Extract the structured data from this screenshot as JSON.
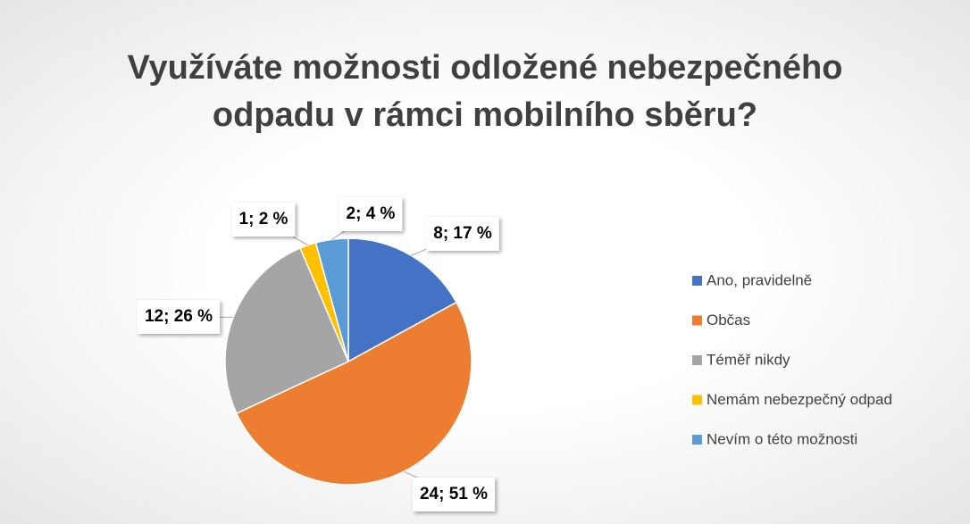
{
  "chart_data": {
    "type": "pie",
    "title": "Využíváte možnosti odložené nebezpečného odpadu v rámci mobilního sběru?",
    "categories": [
      "Ano, pravidelně",
      "Občas",
      "Téměř nikdy",
      "Nemám nebezpečný odpad",
      "Nevím o této možnosti"
    ],
    "values": [
      8,
      24,
      12,
      1,
      2
    ],
    "value_labels": [
      "8; 17 %",
      "24; 51 %",
      "12; 26 %",
      "1; 2 %",
      "2; 4 %"
    ],
    "colors": [
      "#4472c4",
      "#ed7d31",
      "#a5a5a5",
      "#ffc000",
      "#5b9bd5"
    ],
    "legend": "right"
  }
}
